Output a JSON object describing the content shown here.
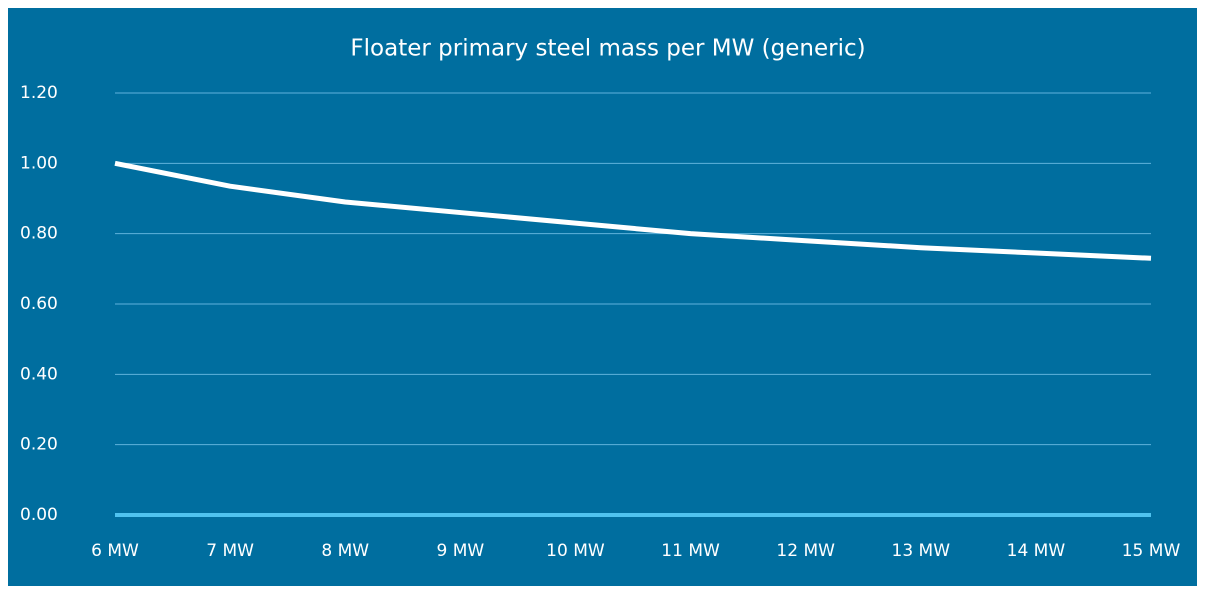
{
  "chart_data": {
    "type": "line",
    "title": "Floater primary steel mass per MW (generic)",
    "categories": [
      "6 MW",
      "7 MW",
      "8 MW",
      "9 MW",
      "10 MW",
      "11 MW",
      "12 MW",
      "13 MW",
      "14 MW",
      "15 MW"
    ],
    "series": [
      {
        "color": "#ffffff",
        "values": [
          1.0,
          0.935,
          0.89,
          0.86,
          0.83,
          0.8,
          0.78,
          0.76,
          0.745,
          0.73
        ]
      }
    ],
    "ylim": [
      0,
      1.2
    ],
    "yticks": [
      {
        "value": 0,
        "label": "0.00"
      },
      {
        "value": 0.2,
        "label": "0.20"
      },
      {
        "value": 0.4,
        "label": "0.40"
      },
      {
        "value": 0.6,
        "label": "0.60"
      },
      {
        "value": 0.8,
        "label": "0.80"
      },
      {
        "value": 1.0,
        "label": "1.00"
      },
      {
        "value": 1.2,
        "label": "1.20"
      }
    ],
    "grid": true
  }
}
